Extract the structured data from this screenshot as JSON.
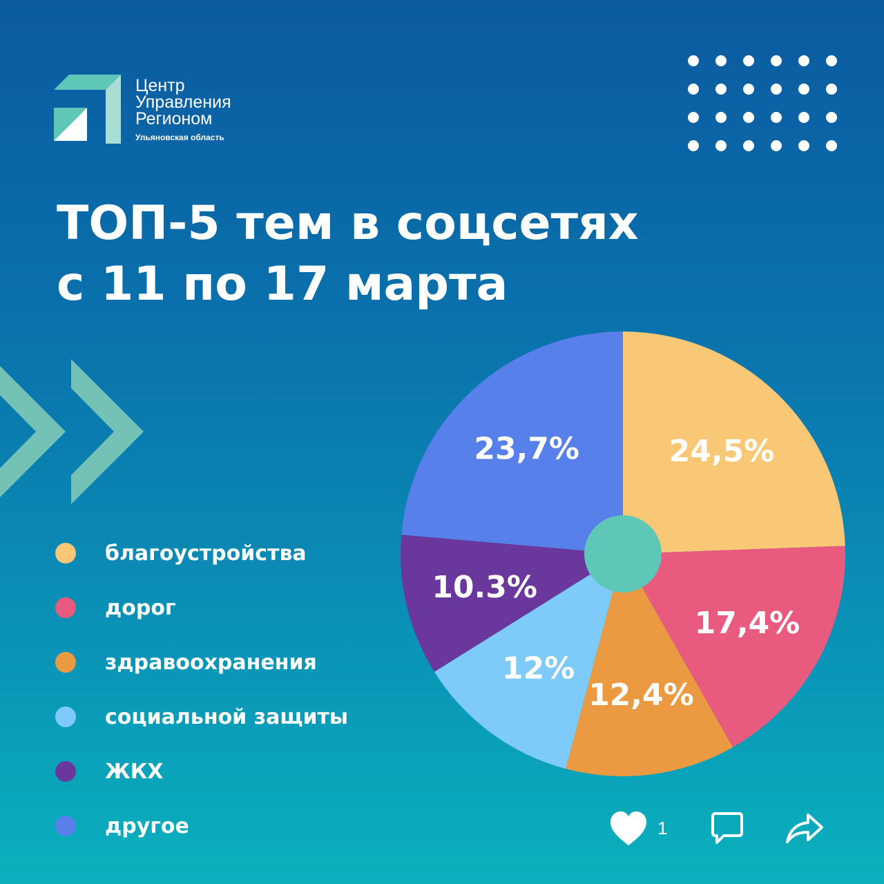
{
  "logo": {
    "line1": "Центр",
    "line2": "Управления",
    "line3": "Регионом",
    "subtitle": "Ульяновская область"
  },
  "title": {
    "line1": "ТОП-5 тем в соцсетях",
    "line2": "с 11 по 17 марта"
  },
  "chart_data": {
    "type": "pie",
    "title": "ТОП-5 тем в соцсетях с 11 по 17 марта",
    "legend_position": "left",
    "slices": [
      {
        "label": "благоустройства",
        "value": 24.5,
        "value_label": "24,5%",
        "color": "#f8c877"
      },
      {
        "label": "дорог",
        "value": 17.4,
        "value_label": "17,4%",
        "color": "#e95b7e"
      },
      {
        "label": "здравоохранения",
        "value": 12.4,
        "value_label": "12,4%",
        "color": "#eb9a41"
      },
      {
        "label": "социальной защиты",
        "value": 12,
        "value_label": "12%",
        "color": "#7ecbf9"
      },
      {
        "label": "ЖКХ",
        "value": 10.3,
        "value_label": "10.3%",
        "color": "#6a379c"
      },
      {
        "label": "другое",
        "value": 23.7,
        "value_label": "23,7%",
        "color": "#5880ea"
      }
    ],
    "center_color": "#5ec7b8"
  },
  "actions": {
    "like_count": "1",
    "like_icon": "heart-icon",
    "comment_icon": "comment-icon",
    "share_icon": "share-icon"
  }
}
